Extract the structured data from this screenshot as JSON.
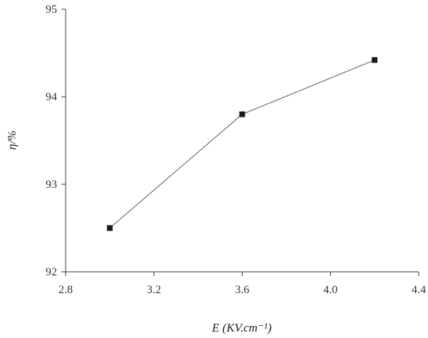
{
  "chart_data": {
    "type": "line",
    "xlabel": "E (KV.cm⁻¹)",
    "ylabel": "η/%",
    "xlim": [
      2.8,
      4.4
    ],
    "ylim": [
      92,
      95
    ],
    "x_ticks": [
      "2.8",
      "3.2",
      "3.6",
      "4.0",
      "4.4"
    ],
    "y_ticks": [
      "92",
      "93",
      "94",
      "95"
    ],
    "grid": false,
    "series": [
      {
        "marker": "square",
        "color": "#1a1a1a",
        "x": [
          3.0,
          3.6,
          4.2
        ],
        "y": [
          92.5,
          93.8,
          94.42
        ]
      }
    ]
  }
}
